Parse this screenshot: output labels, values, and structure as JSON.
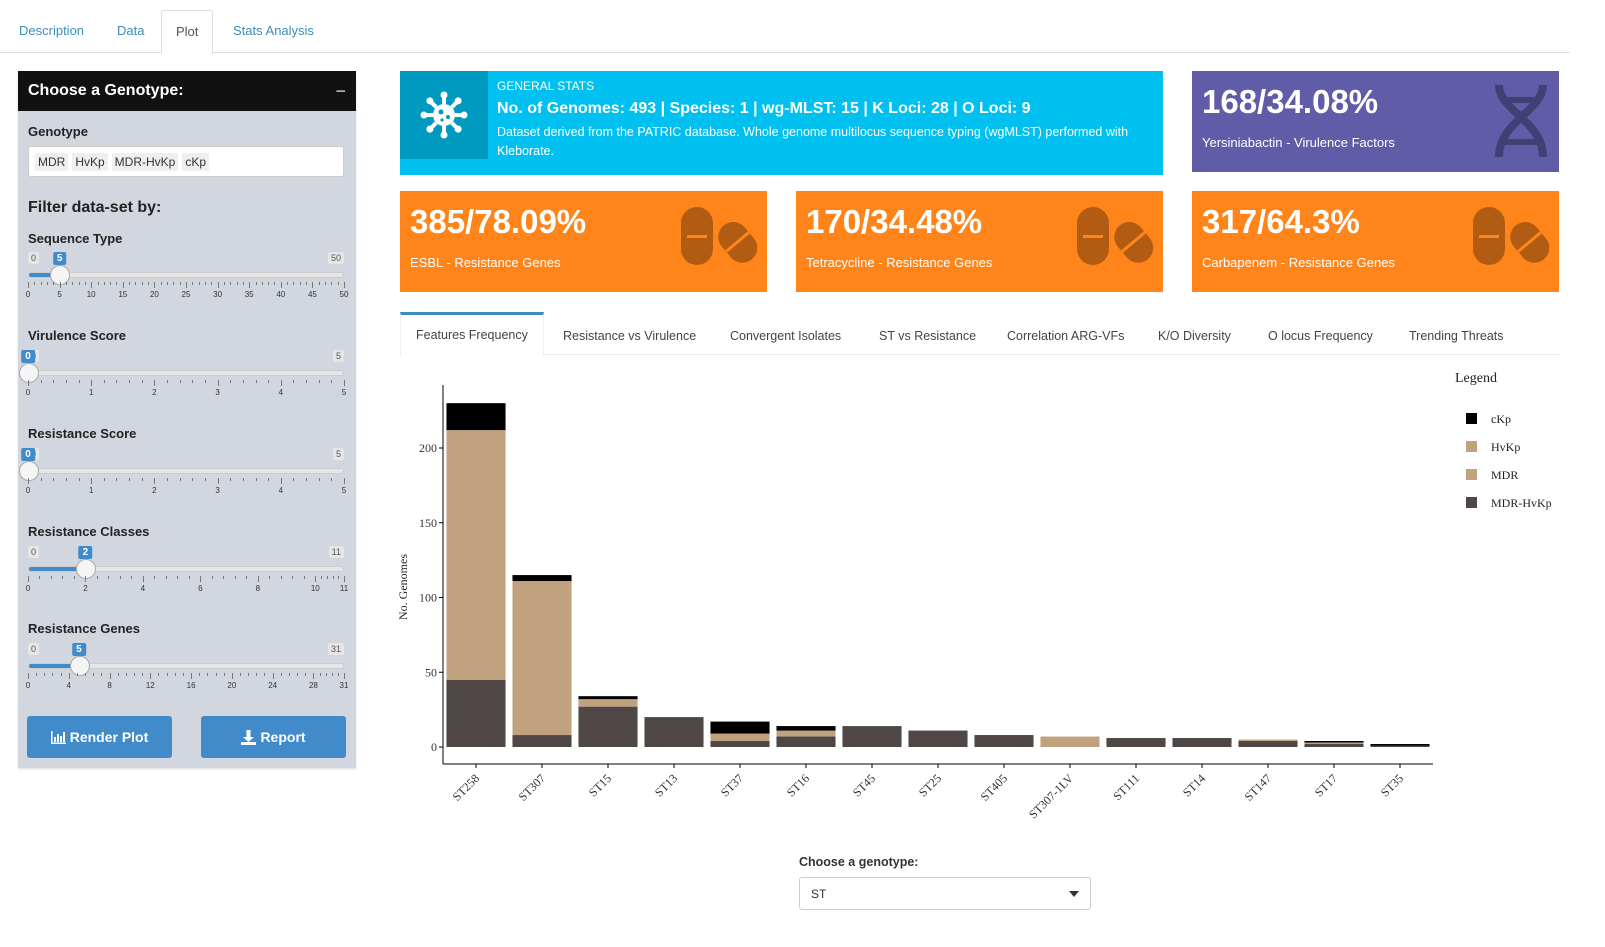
{
  "top_tabs": [
    {
      "label": "Description",
      "active": false
    },
    {
      "label": "Data",
      "active": false
    },
    {
      "label": "Plot",
      "active": true
    },
    {
      "label": "Stats Analysis",
      "active": false
    }
  ],
  "sidebar": {
    "title": "Choose a Genotype:",
    "collapse_symbol": "−",
    "genotype_label": "Genotype",
    "genotype_chips": [
      "MDR",
      "HvKp",
      "MDR-HvKp",
      "cKp"
    ],
    "filter_title": "Filter data-set by:",
    "sliders": [
      {
        "label": "Sequence Type",
        "min": 0,
        "max": 50,
        "value": 5,
        "ticks": [
          0,
          5,
          10,
          15,
          20,
          25,
          30,
          35,
          40,
          45,
          50
        ]
      },
      {
        "label": "Virulence Score",
        "min": 0,
        "max": 5,
        "value": 0,
        "ticks": [
          0,
          1,
          2,
          3,
          4,
          5
        ]
      },
      {
        "label": "Resistance Score",
        "min": 0,
        "max": 5,
        "value": 0,
        "ticks": [
          0,
          1,
          2,
          3,
          4,
          5
        ]
      },
      {
        "label": "Resistance Classes",
        "min": 0,
        "max": 11,
        "value": 2,
        "ticks": [
          0,
          2,
          4,
          6,
          8,
          10,
          11
        ]
      },
      {
        "label": "Resistance Genes",
        "min": 0,
        "max": 31,
        "value": 5,
        "ticks": [
          0,
          4,
          8,
          12,
          16,
          20,
          24,
          28,
          31
        ]
      }
    ],
    "render_button": "Render Plot",
    "report_button": "Report"
  },
  "general_stats": {
    "subtitle": "GENERAL STATS",
    "title": "No. of Genomes: 493 | Species: 1 | wg-MLST: 15 | K Loci: 28 | O Loci: 9",
    "description": "Dataset derived from the PATRIC database. Whole genome multilocus sequence typing (wgMLST) performed with Kleborate.",
    "color": "#00c0ef",
    "icon": "virus-icon"
  },
  "value_boxes": [
    {
      "value": "168/34.08%",
      "label": "Yersiniabactin - Virulence Factors",
      "color": "#605ca8",
      "icon": "dna-icon"
    },
    {
      "value": "385/78.09%",
      "label": "ESBL - Resistance Genes",
      "color": "#ff851b",
      "icon": "pills-icon"
    },
    {
      "value": "170/34.48%",
      "label": "Tetracycline - Resistance Genes",
      "color": "#ff851b",
      "icon": "pills-icon"
    },
    {
      "value": "317/64.3%",
      "label": "Carbapenem - Resistance Genes",
      "color": "#ff851b",
      "icon": "pills-icon"
    }
  ],
  "plot_tabs": [
    {
      "label": "Features Frequency",
      "active": true
    },
    {
      "label": "Resistance vs Virulence",
      "active": false
    },
    {
      "label": "Convergent Isolates",
      "active": false
    },
    {
      "label": "ST vs Resistance",
      "active": false
    },
    {
      "label": "Correlation ARG-VFs",
      "active": false
    },
    {
      "label": "K/O Diversity",
      "active": false
    },
    {
      "label": "O locus Frequency",
      "active": false
    },
    {
      "label": "Trending Threats",
      "active": false
    }
  ],
  "chart_data": {
    "type": "bar",
    "stacked": true,
    "ylabel": "No. Genomes",
    "xlabel": "",
    "ylim": [
      0,
      230
    ],
    "yticks": [
      0,
      50,
      100,
      150,
      200
    ],
    "legend_title": "Legend",
    "legend_position": "right",
    "categories": [
      "ST258",
      "ST307",
      "ST15",
      "ST13",
      "ST37",
      "ST16",
      "ST45",
      "ST25",
      "ST405",
      "ST307-1LV",
      "ST111",
      "ST14",
      "ST147",
      "ST17",
      "ST35"
    ],
    "series": [
      {
        "name": "MDR-HvKp",
        "color": "#4f4745",
        "values": [
          45,
          8,
          27,
          20,
          4,
          7,
          14,
          11,
          8,
          0,
          6,
          6,
          4,
          2,
          1
        ]
      },
      {
        "name": "MDR",
        "color": "#c1a27e",
        "values": [
          167,
          103,
          5,
          0,
          5,
          4,
          0,
          0,
          0,
          7,
          0,
          0,
          1,
          1,
          0
        ]
      },
      {
        "name": "HvKp",
        "color": "#c1a27e",
        "values": [
          0,
          0,
          0,
          0,
          0,
          0,
          0,
          0,
          0,
          0,
          0,
          0,
          0,
          0,
          0
        ]
      },
      {
        "name": "cKp",
        "color": "#000000",
        "values": [
          18,
          4,
          2,
          0,
          8,
          3,
          0,
          0,
          0,
          0,
          0,
          0,
          0,
          1,
          1
        ]
      }
    ]
  },
  "genotype_select": {
    "label": "Choose a genotype:",
    "value": "ST"
  }
}
